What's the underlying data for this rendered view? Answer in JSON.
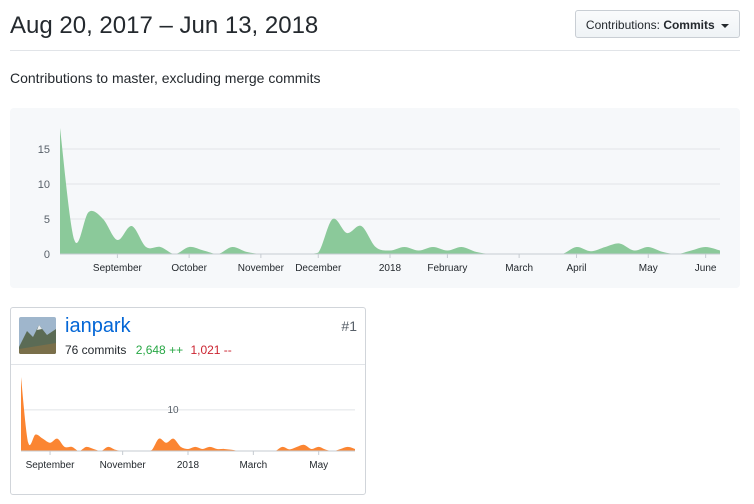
{
  "header": {
    "title": "Aug 20, 2017 – Jun 13, 2018",
    "dropdown_prefix": "Contributions:",
    "dropdown_value": "Commits"
  },
  "subtitle": "Contributions to master, excluding merge commits",
  "colors": {
    "main_area": "#8bc99a",
    "user_area": "#fb8532",
    "added": "#28a745",
    "deleted": "#cb2431",
    "link": "#0366d6"
  },
  "chart_data": [
    {
      "type": "area",
      "title": "",
      "xlabel": "",
      "ylabel": "",
      "ylim": [
        0,
        18
      ],
      "y_ticks": [
        0,
        5,
        10,
        15
      ],
      "x_ticks": [
        {
          "label": "September",
          "week": 4
        },
        {
          "label": "October",
          "week": 9
        },
        {
          "label": "November",
          "week": 14
        },
        {
          "label": "December",
          "week": 18
        },
        {
          "label": "2018",
          "week": 23
        },
        {
          "label": "February",
          "week": 27
        },
        {
          "label": "March",
          "week": 32
        },
        {
          "label": "April",
          "week": 36
        },
        {
          "label": "May",
          "week": 41
        },
        {
          "label": "June",
          "week": 45
        }
      ],
      "grid": true,
      "series": [
        {
          "values": [
            18,
            2,
            6,
            5,
            2,
            4,
            1,
            1,
            0,
            1,
            0.5,
            0,
            1,
            0.3,
            0,
            0,
            0,
            0,
            0.2,
            5,
            3,
            4,
            1,
            0.5,
            1,
            0.5,
            1,
            0.5,
            1,
            0.3,
            0,
            0,
            0,
            0,
            0,
            0,
            1,
            0.4,
            1,
            1.5,
            0.5,
            1,
            0.3,
            0,
            0.5,
            1,
            0.5
          ]
        }
      ]
    },
    {
      "type": "area",
      "title": "",
      "ylim": [
        0,
        18
      ],
      "y_ticks": [
        10
      ],
      "x_ticks": [
        {
          "label": "September",
          "week": 4
        },
        {
          "label": "November",
          "week": 14
        },
        {
          "label": "2018",
          "week": 23
        },
        {
          "label": "March",
          "week": 32
        },
        {
          "label": "May",
          "week": 41
        }
      ],
      "grid": true,
      "series": [
        {
          "values": [
            18,
            2,
            4,
            3,
            2,
            3,
            1,
            1,
            0,
            1,
            0.5,
            0,
            1,
            0.3,
            0,
            0,
            0,
            0,
            0.2,
            3,
            2,
            3,
            1,
            0.5,
            1,
            0.5,
            1,
            0.5,
            0.5,
            0.3,
            0,
            0,
            0,
            0,
            0,
            0,
            1,
            0.4,
            1,
            1.5,
            0.5,
            1,
            0.3,
            0,
            0.5,
            1,
            0.5
          ]
        }
      ]
    }
  ],
  "contributor": {
    "username": "ianpark",
    "commits": "76 commits",
    "additions": "2,648 ++",
    "deletions": "1,021 --",
    "rank": "#1"
  }
}
